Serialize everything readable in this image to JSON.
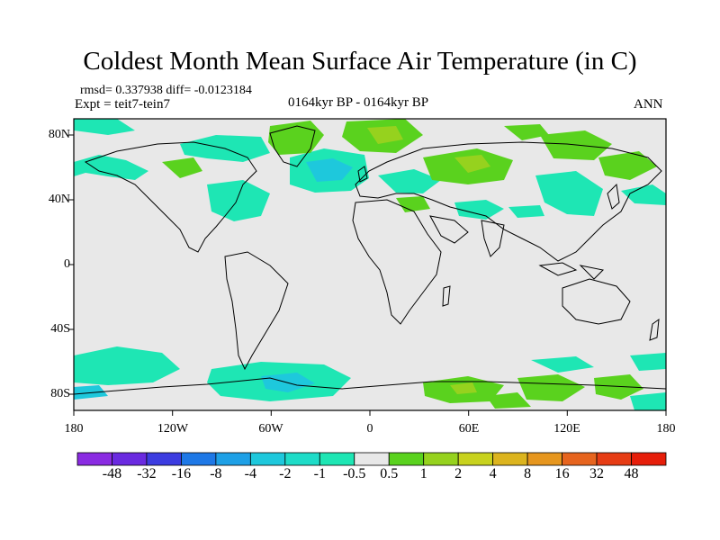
{
  "title": "Coldest Month Mean Surface Air Temperature (in C)",
  "stats": "rmsd= 0.337938 diff= -0.0123184",
  "experiment": "Expt = teit7-tein7",
  "period": "0164kyr BP - 0164kyr BP",
  "season": "ANN",
  "lat_ticks": [
    "80N",
    "40N",
    "0",
    "40S",
    "80S"
  ],
  "lon_ticks": [
    "180",
    "120W",
    "60W",
    "0",
    "60E",
    "120E",
    "180"
  ],
  "colorbar": {
    "labels": [
      "-48",
      "-32",
      "-16",
      "-8",
      "-4",
      "-2",
      "-1",
      "-0.5",
      "0.5",
      "1",
      "2",
      "4",
      "8",
      "16",
      "32",
      "48"
    ],
    "colors": [
      "#8a2be2",
      "#6a2ae0",
      "#3c3ce0",
      "#1e78e6",
      "#1ea0e6",
      "#1ec8dc",
      "#1edcc8",
      "#1ee6b4",
      "#e8e8e8",
      "#5ad21e",
      "#96d21e",
      "#c8d21e",
      "#dcb41e",
      "#e6961e",
      "#e6641e",
      "#e63c14",
      "#e61e0a"
    ]
  },
  "colors": {
    "background": "#e8e8e8",
    "neutral": "#e8e8e8",
    "positive_small": "#5ad21e",
    "positive_mid": "#96d21e",
    "negative_small": "#1ee6b4",
    "negative_mid": "#1ec8dc"
  }
}
